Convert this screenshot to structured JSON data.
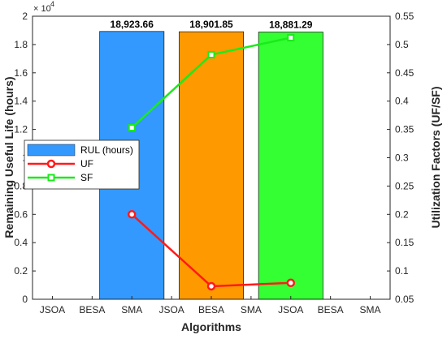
{
  "chart_data": {
    "type": "bar",
    "categories": [
      "JSOA",
      "BESA",
      "SMA",
      "JSOA",
      "BESA",
      "SMA",
      "JSOA",
      "BESA",
      "SMA"
    ],
    "xlabel": "Algorithms",
    "ylabel": "Remaining Useful Life (hours)",
    "ylabel_right": "Utilization Factors (UF/SF)",
    "ylim": [
      0,
      20000
    ],
    "ylim_right": [
      0.05,
      0.55
    ],
    "y_ticks": [
      "0",
      "0.2",
      "0.4",
      "0.6",
      "0.8",
      "1",
      "1.2",
      "1.4",
      "1.6",
      "1.8",
      "2"
    ],
    "y_right_ticks": [
      "0.05",
      "0.1",
      "0.15",
      "0.2",
      "0.25",
      "0.3",
      "0.35",
      "0.4",
      "0.45",
      "0.5",
      "0.55"
    ],
    "y_exponent_base": "× 10",
    "y_exponent_power": "4",
    "bars": [
      {
        "category_index": 2,
        "value": 18923.66,
        "label": "18,923.66",
        "color": "#3399ff"
      },
      {
        "category_index": 4,
        "value": 18901.85,
        "label": "18,901.85",
        "color": "#ff9900"
      },
      {
        "category_index": 6,
        "value": 18881.29,
        "label": "18,881.29",
        "color": "#33ff33"
      }
    ],
    "series": [
      {
        "name": "RUL (hours)",
        "kind": "bar",
        "color": "#3399ff"
      },
      {
        "name": "UF",
        "kind": "line",
        "axis": "right",
        "color": "#ff1a1a",
        "marker": "circle",
        "points": [
          {
            "category_index": 2,
            "value": 0.2
          },
          {
            "category_index": 4,
            "value": 0.073
          },
          {
            "category_index": 6,
            "value": 0.079
          }
        ]
      },
      {
        "name": "SF",
        "kind": "line",
        "axis": "right",
        "color": "#1aeb1a",
        "marker": "square",
        "points": [
          {
            "category_index": 2,
            "value": 0.353
          },
          {
            "category_index": 4,
            "value": 0.482
          },
          {
            "category_index": 6,
            "value": 0.512
          }
        ]
      }
    ],
    "grid": false,
    "legend_position": "middle-left"
  }
}
